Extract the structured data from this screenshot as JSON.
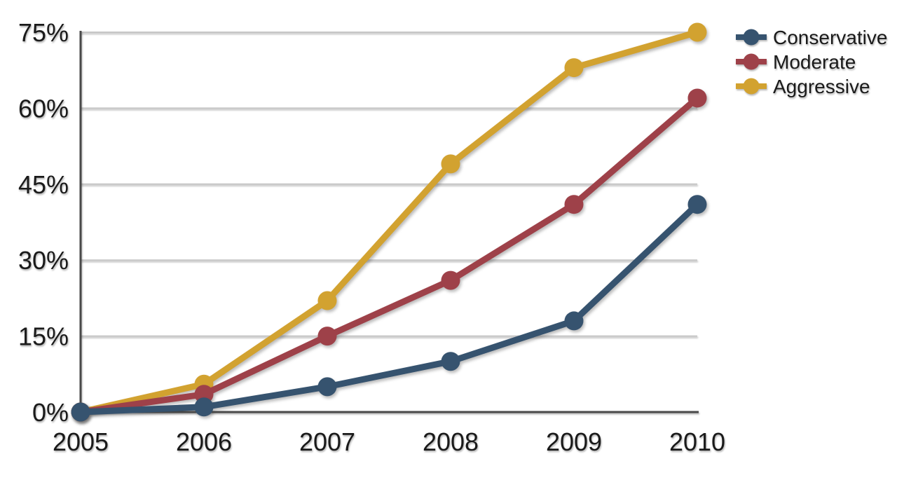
{
  "chart_data": {
    "type": "line",
    "title": "",
    "x_labels": [
      "2005",
      "2006",
      "2007",
      "2008",
      "2009",
      "2010"
    ],
    "y_tick_labels": [
      "0%",
      "15%",
      "30%",
      "45%",
      "60%",
      "75%"
    ],
    "y_tick_values": [
      0,
      15,
      30,
      45,
      60,
      75
    ],
    "ylim": [
      0,
      75
    ],
    "grid": true,
    "legend_position": "top-right",
    "series": [
      {
        "name": "Conservative",
        "color": "#36536F",
        "values": [
          0,
          1,
          5,
          10,
          18,
          41
        ]
      },
      {
        "name": "Moderate",
        "color": "#9E4149",
        "values": [
          0,
          3.5,
          15,
          26,
          41,
          62
        ]
      },
      {
        "name": "Aggressive",
        "color": "#D2A230",
        "values": [
          0,
          5.5,
          22,
          49,
          68,
          75
        ]
      }
    ]
  },
  "colors": {
    "background": "#FFFFFF",
    "gridline": "#C6C6C6",
    "axis": "#4A4A4A",
    "text": "#1A1A1A"
  }
}
